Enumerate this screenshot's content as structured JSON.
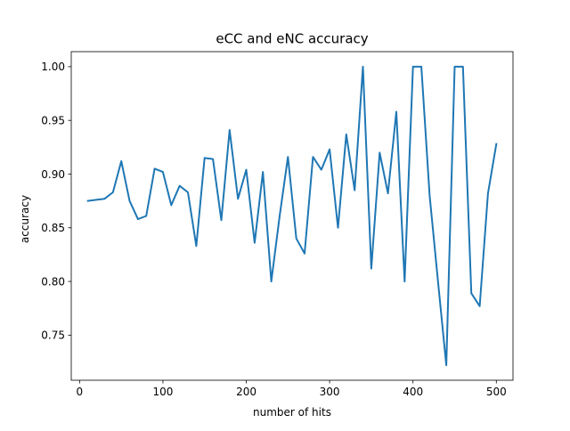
{
  "chart_data": {
    "type": "line",
    "title": "eCC and eNC accuracy",
    "xlabel": "number of hits",
    "ylabel": "accuracy",
    "xlim": [
      -10,
      520
    ],
    "ylim": [
      0.708,
      1.014
    ],
    "x_ticks": [
      0,
      100,
      200,
      300,
      400,
      500
    ],
    "y_ticks": [
      0.75,
      0.8,
      0.85,
      0.9,
      0.95,
      1.0
    ],
    "x_tick_labels": [
      "0",
      "100",
      "200",
      "300",
      "400",
      "500"
    ],
    "y_tick_labels": [
      "0.75",
      "0.80",
      "0.85",
      "0.90",
      "0.95",
      "1.00"
    ],
    "grid": false,
    "legend": "none",
    "series": [
      {
        "color": "#1f77b4",
        "x": [
          10,
          20,
          30,
          40,
          50,
          60,
          70,
          80,
          90,
          100,
          110,
          120,
          130,
          140,
          150,
          160,
          170,
          180,
          190,
          200,
          210,
          220,
          230,
          240,
          250,
          260,
          270,
          280,
          290,
          300,
          310,
          320,
          330,
          340,
          350,
          360,
          370,
          380,
          390,
          400,
          410,
          420,
          430,
          440,
          450,
          460,
          470,
          480,
          490,
          500
        ],
        "y": [
          0.875,
          0.876,
          0.877,
          0.883,
          0.912,
          0.875,
          0.858,
          0.861,
          0.905,
          0.902,
          0.871,
          0.889,
          0.883,
          0.833,
          0.915,
          0.914,
          0.857,
          0.941,
          0.877,
          0.904,
          0.836,
          0.902,
          0.8,
          0.861,
          0.916,
          0.84,
          0.826,
          0.916,
          0.904,
          0.923,
          0.85,
          0.937,
          0.885,
          1.0,
          0.812,
          0.92,
          0.882,
          0.958,
          0.8,
          1.0,
          1.0,
          0.88,
          0.8,
          0.722,
          1.0,
          1.0,
          0.789,
          0.777,
          0.882,
          0.928
        ]
      }
    ]
  }
}
